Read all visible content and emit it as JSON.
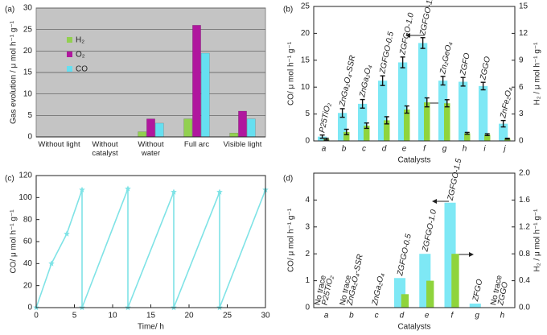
{
  "chart_data": [
    {
      "type": "bar",
      "panel": "(a)",
      "ylabel": "Gas evolution / μ mol h⁻¹ g⁻¹",
      "categories": [
        "Without light",
        "Without catalyst",
        "Without water",
        "Full arc",
        "Visible light"
      ],
      "series": [
        {
          "name": "H₂",
          "color": "#92d050",
          "values": [
            0,
            0,
            1.2,
            4.2,
            0.9
          ]
        },
        {
          "name": "O₂",
          "color": "#b0179e",
          "values": [
            0,
            0,
            4.2,
            26,
            6
          ]
        },
        {
          "name": "CO",
          "color": "#66dff0",
          "values": [
            0,
            0,
            3.2,
            19.5,
            4.2
          ]
        }
      ],
      "ylim": [
        0,
        30
      ],
      "yticks": [
        0,
        5,
        10,
        15,
        20,
        25,
        30
      ],
      "grid": true,
      "legend": "center left"
    },
    {
      "type": "bar",
      "panel": "(b)",
      "xlabel": "Catalysts",
      "ylabel": "CO/ μ mol h⁻¹ g⁻¹",
      "y2label": "H₂ / μ mol h⁻¹ g⁻¹",
      "categories": [
        "a",
        "b",
        "c",
        "d",
        "e",
        "f",
        "g",
        "h",
        "i",
        "j"
      ],
      "annotations": [
        "P25TiO₂",
        "ZnGa₂O₄-SSR",
        "ZnGa₂O₄",
        "ZGFGO-0.5",
        "ZGFGO-1.0",
        "ZGFGO-1.5",
        "Zn₂GeO₄",
        "ZGFO",
        "ZGGO",
        "ZnFe₂O₄"
      ],
      "series": [
        {
          "color": "#7ee8f5",
          "values": [
            0.8,
            5.2,
            6.9,
            11.2,
            14.6,
            18.2,
            11.2,
            11,
            10.2,
            3.2
          ],
          "errors": [
            0.3,
            0.8,
            0.8,
            0.9,
            1.0,
            1.0,
            0.8,
            0.8,
            0.7,
            0.6
          ]
        },
        {
          "color": "#8fd43c",
          "axis": "y2",
          "values": [
            0.2,
            1.0,
            1.7,
            2.3,
            3.5,
            4.3,
            4.2,
            0.85,
            0.7,
            0.25
          ],
          "errors": [
            0.1,
            0.3,
            0.3,
            0.4,
            0.4,
            0.5,
            0.4,
            0.1,
            0.1,
            0.05
          ]
        }
      ],
      "ylim": [
        0,
        25
      ],
      "yticks": [
        0,
        5,
        10,
        15,
        20,
        25
      ],
      "y2lim": [
        0,
        15
      ],
      "y2ticks": [
        0,
        3,
        6,
        9,
        12,
        15
      ]
    },
    {
      "type": "line",
      "panel": "(c)",
      "xlabel": "Time/ h",
      "ylabel": "CO/ μ mol h⁻¹ g⁻¹",
      "series": [
        {
          "color": "#7fe3e6",
          "x": [
            0,
            2,
            4,
            6,
            6,
            12,
            12,
            18,
            18,
            24,
            24,
            30
          ],
          "values": [
            0,
            40,
            67,
            107,
            0,
            108,
            0,
            105,
            0,
            105,
            0,
            107
          ]
        }
      ],
      "xlim": [
        0,
        30
      ],
      "xticks": [
        0,
        5,
        10,
        15,
        20,
        25,
        30
      ],
      "ylim": [
        0,
        120
      ],
      "yticks": [
        0,
        20,
        40,
        60,
        80,
        100,
        120
      ]
    },
    {
      "type": "bar",
      "panel": "(d)",
      "xlabel": "Catalysts",
      "ylabel": "CO/ μ mol h⁻¹ g⁻¹",
      "y2label": "H₂ / μ mol h⁻¹ g⁻¹",
      "categories": [
        "a",
        "b",
        "c",
        "d",
        "e",
        "f",
        "g",
        "h"
      ],
      "annotations": [
        "P25TiO₂",
        "ZnGa₂O₄-SSR",
        "ZnGa₂O₄",
        "ZGFGO-0.5",
        "ZGFGO-1.0",
        "ZGFGO-1.5",
        "ZFGO",
        "ZGGO"
      ],
      "notes": [
        "No trace",
        "No trace",
        null,
        null,
        null,
        null,
        null,
        "No trace"
      ],
      "series": [
        {
          "color": "#7ee8f5",
          "values": [
            0,
            0,
            0,
            1.1,
            2.0,
            3.9,
            0.15,
            0
          ]
        },
        {
          "color": "#8fd43c",
          "axis": "y2",
          "values": [
            0,
            0,
            0,
            0.2,
            0.4,
            0.8,
            0,
            0
          ]
        }
      ],
      "ylim": [
        0,
        5
      ],
      "yticks": [
        0,
        1,
        2,
        3,
        4
      ],
      "y2lim": [
        0,
        2.0
      ],
      "y2ticks": [
        {
          "value": 0,
          "label": "0.0"
        },
        {
          "value": 0.4,
          "label": "0.4"
        },
        {
          "value": 0.8,
          "label": "0.8"
        },
        {
          "value": 1.2,
          "label": "1.2"
        },
        {
          "value": 1.6,
          "label": "1.6"
        },
        {
          "value": 2.0,
          "label": "2.0"
        }
      ]
    }
  ]
}
